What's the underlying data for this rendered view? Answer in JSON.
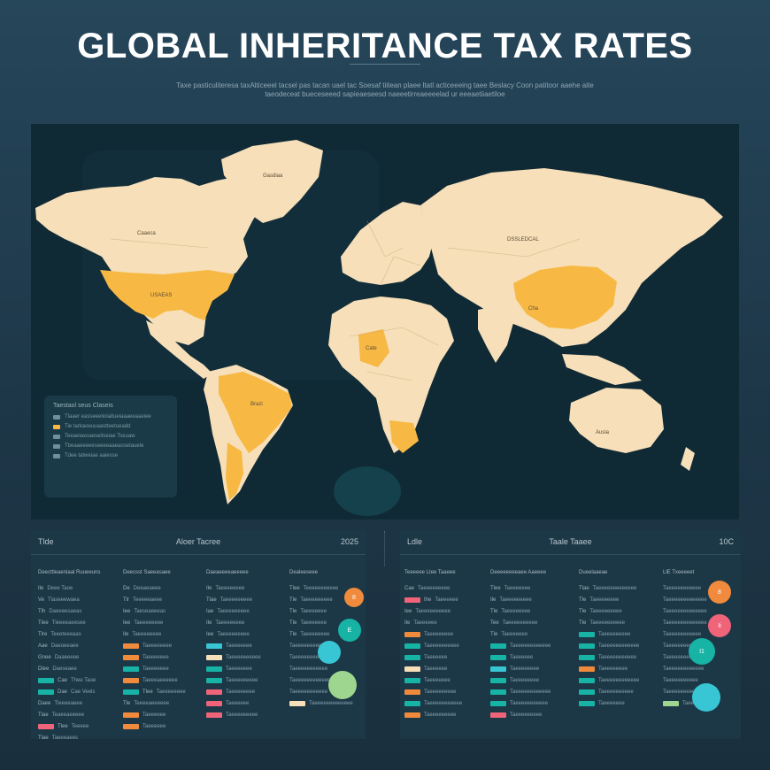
{
  "page": {
    "title": "GLOBAL INHERITANCE TAX RATES",
    "subtitle_line1": "Taxe  pasticuliteresa taxAlticeeel tacsel pas tacan uael tac Soesaf tiitean plaee ltatl acticeeeing taee Beslacy Coon  patitoor aaehe aite",
    "subtitle_line2": "taeodeceat bueceseeed sapieaeseesd naeeetirreaeeeelad ur eeeaetiiaetiloe"
  },
  "colors": {
    "background": "#23404f",
    "ocean": "#0f2a35",
    "land": "#f6dfb9",
    "highlight": "#f7b944",
    "orange": "#f08a3c",
    "teal": "#17b3a5",
    "cyan": "#38c6d4",
    "pink": "#f0647a",
    "green": "#9fd68f"
  },
  "map": {
    "labels": {
      "greenland": "Gasdiaa",
      "canada": "Caaeca",
      "usa": "USAEAS",
      "brazil": "Brazi",
      "russia": "DSSLEDCAL",
      "china": "Cha",
      "australia": "Ausia",
      "africa_mid": "Cate"
    },
    "legend": {
      "title": "Taestaol seus Claseis",
      "items": [
        {
          "text": "Tlaaer easseeeiioiaitueiaaaeeaaeiee",
          "color": "#6f8f9c"
        },
        {
          "text": "Tie tarkaoeuuaastteetoeadd ",
          "color": "#f7b944"
        },
        {
          "text": "Teeaeiaxoaeseitseiae Tseuaw",
          "color": "#6f8f9c"
        },
        {
          "text": "Tbeaaeeeeeseeeeaaeaosetauele",
          "color": "#6f8f9c"
        },
        {
          "text": "Tdee tatweiae aaiesse ",
          "color": "#6f8f9c"
        }
      ]
    }
  },
  "left_table": {
    "head_left": "Tlde",
    "head_center": "Aloer Tacree",
    "head_right": "2025",
    "columns": [
      {
        "header": "Deecttleaeniaal Ruueeuns",
        "rows": [
          {
            "a": "Ile",
            "b": "Deee Taoe",
            "color": ""
          },
          {
            "a": "Ve",
            "b": "Tlaseeewaea",
            "color": ""
          },
          {
            "a": "Tlh",
            "b": "Daeeeesaeas",
            "color": ""
          },
          {
            "a": "Tlee",
            "b": "Tleeeeaeesee",
            "color": ""
          },
          {
            "a": "Tlre",
            "b": "Teeeteeeaas",
            "color": ""
          },
          {
            "a": "Aae",
            "b": "Daeoeeaee",
            "color": ""
          },
          {
            "a": "Gnee",
            "b": "Daaeeeee",
            "color": ""
          },
          {
            "a": "Dlee",
            "b": "Daeseaee",
            "color": ""
          },
          {
            "a": "Cae",
            "b": "Thee Taoe",
            "color": "#17b3a5"
          },
          {
            "a": "Dae",
            "b": "Cae Veels",
            "color": "#17b3a5"
          },
          {
            "a": "Daee",
            "b": "Tleeeeaeee",
            "color": ""
          },
          {
            "a": "Tlae",
            "b": "Teaeeaeeeee",
            "color": ""
          },
          {
            "a": "Tlee",
            "b": "Teeeee",
            "color": "#f0647a"
          },
          {
            "a": "Tlae",
            "b": "Taeeeaees",
            "color": ""
          }
        ]
      },
      {
        "header": "Deecsst Saeeasaee",
        "rows": [
          {
            "a": "De",
            "b": "Deeaeaeee",
            "color": ""
          },
          {
            "a": "Tlr",
            "b": "Teeeeeaeee",
            "color": ""
          },
          {
            "a": "Iee",
            "b": "Taeseaeeeas",
            "color": ""
          },
          {
            "a": "Iee",
            "b": "Taeeeeeeee",
            "color": ""
          },
          {
            "a": "Ile",
            "b": "Taeeeeeeee",
            "color": ""
          },
          {
            "a": "",
            "b": "Taeeeeeeee",
            "color": "#f08a3c"
          },
          {
            "a": "",
            "b": "Taeeeeeee",
            "color": "#f08a3c"
          },
          {
            "a": "",
            "b": "Taeeeeeee",
            "color": "#17b3a5"
          },
          {
            "a": "",
            "b": "Taeeeaeeeeee",
            "color": "#f08a3c"
          },
          {
            "a": "Tlee",
            "b": "Taeeeeeeee",
            "color": "#17b3a5"
          },
          {
            "a": "Tle",
            "b": "Teeeeaeeeeee",
            "color": ""
          },
          {
            "a": "",
            "b": "Taeeeeee",
            "color": "#f08a3c"
          },
          {
            "a": "",
            "b": "Taeeeeee",
            "color": "#f08a3c"
          }
        ]
      },
      {
        "header": "Daeaeeeeaeeeee",
        "rows": [
          {
            "a": "Ile",
            "b": "Taeeeeeeee",
            "color": ""
          },
          {
            "a": "Tlae",
            "b": "Taeeeeeeeee",
            "color": ""
          },
          {
            "a": "Iae",
            "b": "Taeeeeeeeee",
            "color": ""
          },
          {
            "a": "Ile",
            "b": "Taeeeeeeee",
            "color": ""
          },
          {
            "a": "Iee",
            "b": "Taeeeeeeeee",
            "color": ""
          },
          {
            "a": "",
            "b": "Taeeeeeee",
            "color": "#38c6d4"
          },
          {
            "a": "",
            "b": "Taeeeeeeeeee",
            "color": "#f6dfb9"
          },
          {
            "a": "",
            "b": "Taeeeeeee",
            "color": "#17b3a5"
          },
          {
            "a": "",
            "b": "Taeeeeeeeee",
            "color": "#17b3a5"
          },
          {
            "a": "",
            "b": "Taeeeeeeee",
            "color": "#f0647a"
          },
          {
            "a": "",
            "b": "Taeeeeee",
            "color": "#f0647a"
          },
          {
            "a": "",
            "b": "Taeeeeeeeee",
            "color": "#f0647a"
          }
        ]
      },
      {
        "header": "Dealeeseee",
        "rows": [
          {
            "a": "Tlee",
            "b": "Teeeeeeeeeee",
            "color": ""
          },
          {
            "a": "Tle",
            "b": "Taeeeeeeeee",
            "color": ""
          },
          {
            "a": "Tle",
            "b": "Taeeeeeee",
            "color": ""
          },
          {
            "a": "Tle",
            "b": "Taeeeeeee",
            "color": ""
          },
          {
            "a": "Tle",
            "b": "Taeeeeeeee",
            "color": ""
          },
          {
            "a": "",
            "b": "Taeeeeeeeeeee",
            "color": ""
          },
          {
            "a": "",
            "b": "Taeeeeeeeeee",
            "color": ""
          },
          {
            "a": "",
            "b": "Taeeeeeeeeeee",
            "color": ""
          },
          {
            "a": "",
            "b": "Taeeeeeeeeeeeeee",
            "color": ""
          },
          {
            "a": "",
            "b": "Taeeeeeeeeeee",
            "color": ""
          },
          {
            "a": "",
            "b": "Taeeeeeeeeeeeee",
            "color": "#f6dfb9"
          }
        ]
      }
    ],
    "bubbles": [
      {
        "label": "8",
        "color": "#f08a3c"
      },
      {
        "label": "E",
        "color": "#17b3a5"
      },
      {
        "label": "",
        "color": "#38c6d4"
      },
      {
        "label": "",
        "color": "#9fd68f"
      }
    ]
  },
  "right_table": {
    "head_left": "Ldle",
    "head_center": "Taale Taaee",
    "head_right": "10C",
    "columns": [
      {
        "header": "Teeeeee Ltee Taaeee",
        "rows": [
          {
            "a": "Cae",
            "b": "Taeeeeeeeee",
            "color": ""
          },
          {
            "a": "Ihe",
            "b": "Taeeeeee",
            "color": "#f0647a"
          },
          {
            "a": "Iee",
            "b": "Taeeeeeeeeee",
            "color": ""
          },
          {
            "a": "Ile",
            "b": "Taeeeeee",
            "color": ""
          },
          {
            "a": "",
            "b": "Taeeeeeeee",
            "color": "#f08a3c"
          },
          {
            "a": "",
            "b": "Taeeeeeeeeee",
            "color": "#17b3a5"
          },
          {
            "a": "",
            "b": "Taeeeeee",
            "color": "#17b3a5"
          },
          {
            "a": "",
            "b": "Taeeeeee",
            "color": "#f6dfb9"
          },
          {
            "a": "",
            "b": "Taeeeeeee",
            "color": "#17b3a5"
          },
          {
            "a": "",
            "b": "Taeeeeeeeee",
            "color": "#f08a3c"
          },
          {
            "a": "",
            "b": "Taeeeeeeeeeee",
            "color": "#17b3a5"
          },
          {
            "a": "",
            "b": "Taeeeeeeeee",
            "color": "#f08a3c"
          }
        ]
      },
      {
        "header": "Deeeeeeeeaee Aaeeee",
        "rows": [
          {
            "a": "Tlee",
            "b": "Taeeeeeee",
            "color": ""
          },
          {
            "a": "Ile",
            "b": "Taeeeeeeeee",
            "color": ""
          },
          {
            "a": "Tle",
            "b": "Taeeeeeeee",
            "color": ""
          },
          {
            "a": "Tee",
            "b": "Taeeeeeeeeee",
            "color": ""
          },
          {
            "a": "Tle",
            "b": "Taeeeeeee",
            "color": ""
          },
          {
            "a": "",
            "b": "Taeeeeeeeeeeee",
            "color": "#17b3a5"
          },
          {
            "a": "",
            "b": "Taeeeeee",
            "color": "#17b3a5"
          },
          {
            "a": "",
            "b": "Taeeeeeeee",
            "color": "#38c6d4"
          },
          {
            "a": "",
            "b": "Taeeeeeeee",
            "color": "#17b3a5"
          },
          {
            "a": "",
            "b": "Taeeeeeeeeeeee",
            "color": "#17b3a5"
          },
          {
            "a": "",
            "b": "Taeeeeeeeeeee",
            "color": "#17b3a5"
          },
          {
            "a": "",
            "b": "Taeeeeeeeee",
            "color": "#f0647a"
          }
        ]
      },
      {
        "header": "Dueelaaeae",
        "rows": [
          {
            "a": "Tlae",
            "b": "Taeeeeeeeeeeeee",
            "color": ""
          },
          {
            "a": "Tle",
            "b": "Taeeeeeeee",
            "color": ""
          },
          {
            "a": "Tle",
            "b": "Taeeeeeeeee",
            "color": ""
          },
          {
            "a": "Tle",
            "b": "Taeeeeeeeeee",
            "color": ""
          },
          {
            "a": "",
            "b": "Taeeeeeeeee",
            "color": "#17b3a5"
          },
          {
            "a": "",
            "b": "Taeeeeeeeeeeee",
            "color": "#17b3a5"
          },
          {
            "a": "",
            "b": "Taeeeeeeeeeee",
            "color": "#17b3a5"
          },
          {
            "a": "",
            "b": "Taeeeeeeee",
            "color": "#f08a3c"
          },
          {
            "a": "",
            "b": "Taeeeeeeeeeeee",
            "color": "#17b3a5"
          },
          {
            "a": "",
            "b": "Taeeeeeeeeee",
            "color": "#17b3a5"
          },
          {
            "a": "",
            "b": "Taeeeeeee",
            "color": "#17b3a5"
          }
        ]
      },
      {
        "header": "LlE Txeeeeet",
        "rows": [
          {
            "a": "",
            "b": "Taeeeeeeeeeee",
            "color": ""
          },
          {
            "a": "",
            "b": "Taeeeeeeeeeeeee",
            "color": ""
          },
          {
            "a": "",
            "b": "Taeeeeeeeeeeeee",
            "color": ""
          },
          {
            "a": "",
            "b": "Taeeeeeeeeeeeee",
            "color": ""
          },
          {
            "a": "",
            "b": "Taeeeeeeeeeee",
            "color": ""
          },
          {
            "a": "",
            "b": "Taeeeeeeeeee",
            "color": ""
          },
          {
            "a": "",
            "b": "Taeeeeeeeeee",
            "color": ""
          },
          {
            "a": "",
            "b": "Taeeeeeeeeeeee",
            "color": ""
          },
          {
            "a": "",
            "b": "Taeeeeeeeeee",
            "color": ""
          },
          {
            "a": "",
            "b": "Taeeeeeeeee",
            "color": ""
          },
          {
            "a": "",
            "b": "Taeeee",
            "color": "#9fd68f"
          }
        ]
      }
    ],
    "bubbles": [
      {
        "label": "8",
        "color": "#f08a3c"
      },
      {
        "label": "Ii",
        "color": "#f0647a"
      },
      {
        "label": "I1",
        "color": "#17b3a5"
      },
      {
        "label": "",
        "color": "#38c6d4"
      }
    ]
  }
}
